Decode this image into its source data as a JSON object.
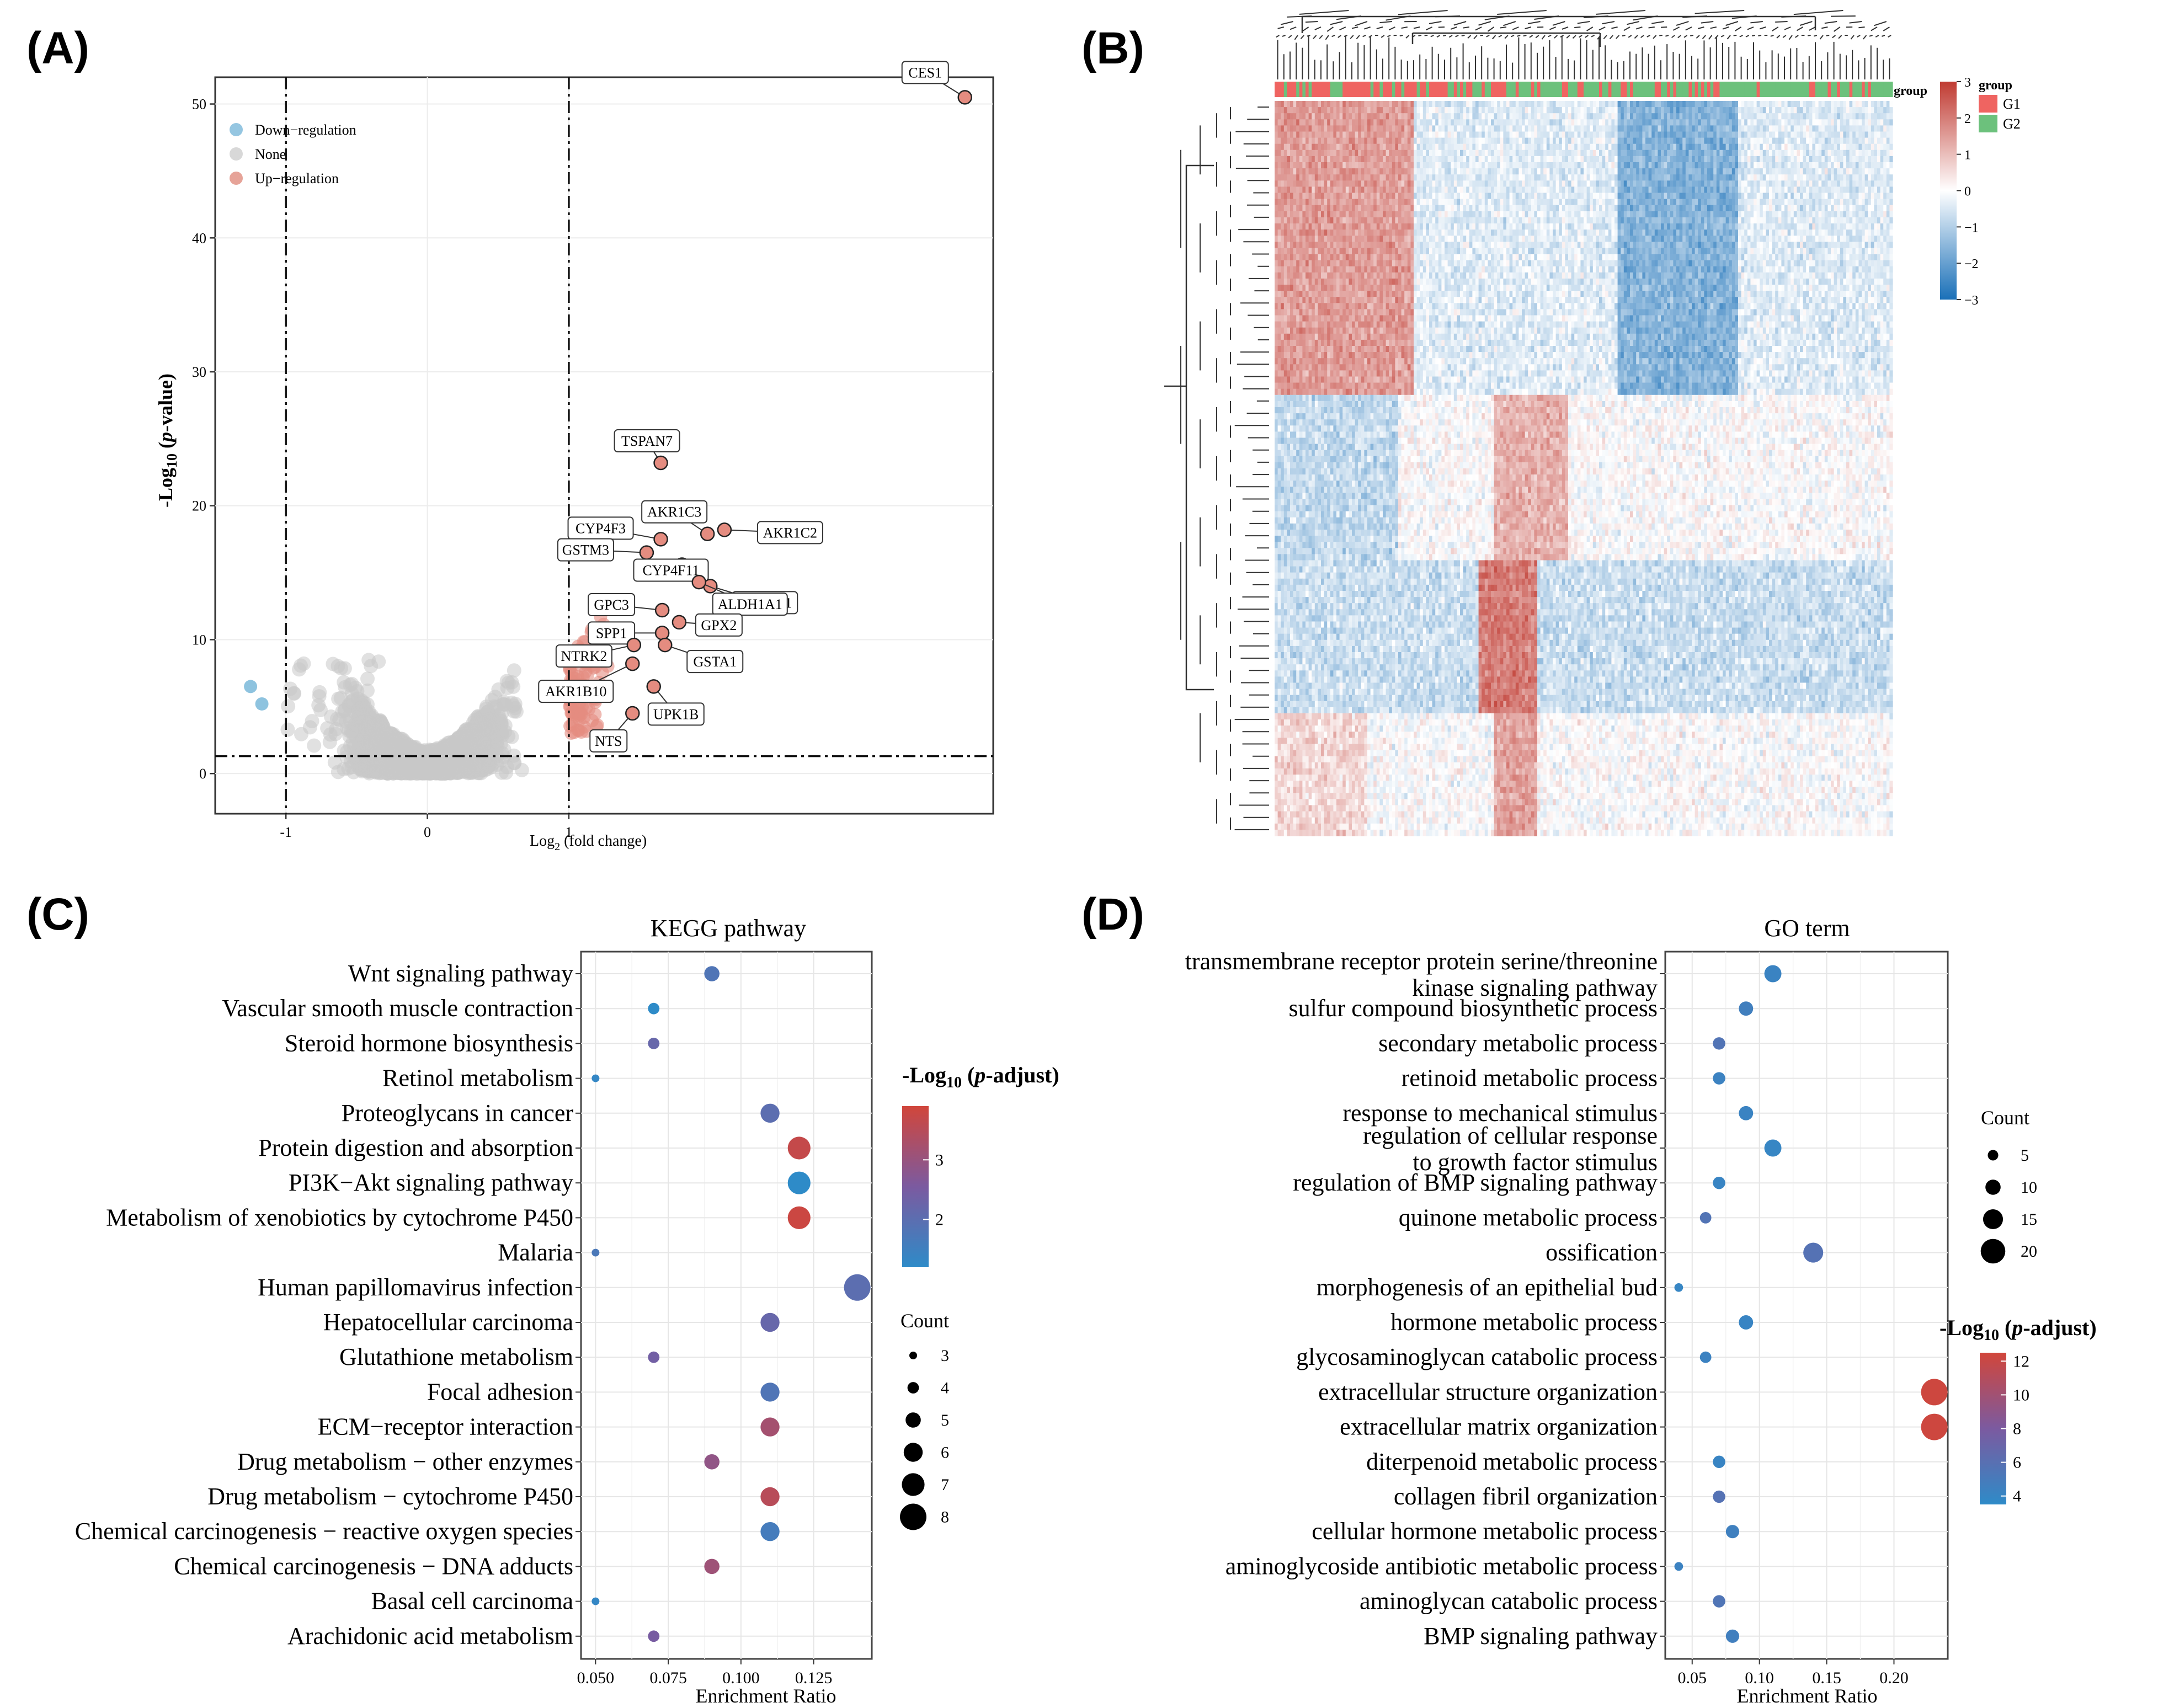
{
  "panels": {
    "A": "(A)",
    "B": "(B)",
    "C": "(C)",
    "D": "(D)"
  },
  "colors": {
    "up": "#c0392b",
    "down": "#2878b5",
    "none": "#c8c8c8",
    "g1": "#ef6461",
    "g2": "#6cc17c"
  },
  "chart_data": [
    {
      "id": "A",
      "type": "scatter",
      "title": "",
      "xlabel": "Log2 (fold change)",
      "xlabel_main": "Log",
      "xlabel_sub": "2",
      "xlabel_rest": " (fold change)",
      "ylabel_prefix": "-Log",
      "ylabel_sub": "10",
      "ylabel_paren_open": " (",
      "ylabel_italic": "p",
      "ylabel_rest": "-value)",
      "xlim": [
        -1.5,
        4.0
      ],
      "ylim": [
        -3,
        52
      ],
      "x_ticks": [
        -1,
        0,
        1
      ],
      "y_ticks": [
        0,
        10,
        20,
        30,
        40,
        50
      ],
      "thresholds": {
        "x": [
          -1,
          1
        ],
        "y": 1.3
      },
      "legend": [
        "Down−regulation",
        "None",
        "Up−regulation"
      ],
      "down_points": [
        {
          "x": -1.25,
          "y": 6.5
        },
        {
          "x": -1.17,
          "y": 5.2
        }
      ],
      "labeled_points": [
        {
          "label": "CES1",
          "x": 3.8,
          "y": 50.5
        },
        {
          "label": "TSPAN7",
          "x": 1.65,
          "y": 23.2
        },
        {
          "label": "AKR1C3",
          "x": 1.98,
          "y": 17.9
        },
        {
          "label": "AKR1C2",
          "x": 2.1,
          "y": 18.2
        },
        {
          "label": "CYP4F3",
          "x": 1.65,
          "y": 17.5
        },
        {
          "label": "GSTM3",
          "x": 1.55,
          "y": 16.5
        },
        {
          "label": "CYP4F11",
          "x": 1.8,
          "y": 15.6
        },
        {
          "label": "AKR1C1",
          "x": 2.0,
          "y": 14.0
        },
        {
          "label": "ALDH1A1",
          "x": 1.92,
          "y": 14.3
        },
        {
          "label": "GPC3",
          "x": 1.66,
          "y": 12.2
        },
        {
          "label": "GPX2",
          "x": 1.78,
          "y": 11.3
        },
        {
          "label": "SPP1",
          "x": 1.66,
          "y": 10.5
        },
        {
          "label": "NTRK2",
          "x": 1.46,
          "y": 9.6
        },
        {
          "label": "GSTA1",
          "x": 1.68,
          "y": 9.6
        },
        {
          "label": "AKR1B10",
          "x": 1.45,
          "y": 8.2
        },
        {
          "label": "UPK1B",
          "x": 1.6,
          "y": 6.5
        },
        {
          "label": "NTS",
          "x": 1.45,
          "y": 4.5
        }
      ]
    },
    {
      "id": "B",
      "type": "heatmap",
      "title": "",
      "color_scale_ticks": [
        "3",
        "2",
        "1",
        "0",
        "−1",
        "−2",
        "−3"
      ],
      "range": [
        -3,
        3
      ],
      "group_legend_title": "group",
      "group_annotation_label": "group",
      "groups": [
        "G1",
        "G2"
      ],
      "n_columns": 200,
      "n_rows": 120
    },
    {
      "id": "C",
      "type": "scatter",
      "title": "KEGG pathway",
      "xlabel": "Enrichment Ratio",
      "ylabel": "",
      "xlim": [
        0.045,
        0.145
      ],
      "x_ticks": [
        "0.050",
        "0.075",
        "0.100",
        "0.125"
      ],
      "x_tick_values": [
        0.05,
        0.075,
        0.1,
        0.125
      ],
      "color_title_prefix": "-Log",
      "color_title_sub": "10",
      "color_title_open": " (",
      "color_title_italic": "p",
      "color_title_rest": "-adjust)",
      "color_range": [
        1.2,
        3.9
      ],
      "color_ticks": [
        2,
        3
      ],
      "size_title": "Count",
      "size_legend": [
        3,
        4,
        5,
        6,
        7,
        8
      ],
      "size_range": [
        3,
        8
      ],
      "terms": [
        {
          "name": "Wnt signaling pathway",
          "ratio": 0.09,
          "count": 5,
          "padj": 1.8
        },
        {
          "name": "Vascular smooth muscle contraction",
          "ratio": 0.07,
          "count": 4,
          "padj": 1.2
        },
        {
          "name": "Steroid hormone biosynthesis",
          "ratio": 0.07,
          "count": 4,
          "padj": 2.2
        },
        {
          "name": "Retinol metabolism",
          "ratio": 0.05,
          "count": 3,
          "padj": 1.3
        },
        {
          "name": "Proteoglycans in cancer",
          "ratio": 0.11,
          "count": 6,
          "padj": 2.0
        },
        {
          "name": "Protein digestion and absorption",
          "ratio": 0.12,
          "count": 7,
          "padj": 3.7
        },
        {
          "name": "PI3K−Akt signaling pathway",
          "ratio": 0.12,
          "count": 7,
          "padj": 1.2
        },
        {
          "name": "Metabolism of xenobiotics by cytochrome P450",
          "ratio": 0.12,
          "count": 7,
          "padj": 3.8
        },
        {
          "name": "Malaria",
          "ratio": 0.05,
          "count": 3,
          "padj": 1.7
        },
        {
          "name": "Human papillomavirus infection",
          "ratio": 0.14,
          "count": 8,
          "padj": 2.0
        },
        {
          "name": "Hepatocellular carcinoma",
          "ratio": 0.11,
          "count": 6,
          "padj": 2.2
        },
        {
          "name": "Glutathione metabolism",
          "ratio": 0.07,
          "count": 4,
          "padj": 2.4
        },
        {
          "name": "Focal adhesion",
          "ratio": 0.11,
          "count": 6,
          "padj": 1.8
        },
        {
          "name": "ECM−receptor interaction",
          "ratio": 0.11,
          "count": 6,
          "padj": 3.2
        },
        {
          "name": "Drug metabolism − other enzymes",
          "ratio": 0.09,
          "count": 5,
          "padj": 2.9
        },
        {
          "name": "Drug metabolism − cytochrome P450",
          "ratio": 0.11,
          "count": 6,
          "padj": 3.5
        },
        {
          "name": "Chemical carcinogenesis − reactive oxygen species",
          "ratio": 0.11,
          "count": 6,
          "padj": 1.6
        },
        {
          "name": "Chemical carcinogenesis − DNA adducts",
          "ratio": 0.09,
          "count": 5,
          "padj": 3.1
        },
        {
          "name": "Basal cell carcinoma",
          "ratio": 0.05,
          "count": 3,
          "padj": 1.3
        },
        {
          "name": "Arachidonic acid metabolism",
          "ratio": 0.07,
          "count": 4,
          "padj": 2.5
        }
      ]
    },
    {
      "id": "D",
      "type": "scatter",
      "title": "GO term",
      "xlabel": "Enrichment Ratio",
      "ylabel": "",
      "xlim": [
        0.03,
        0.24
      ],
      "x_ticks": [
        "0.05",
        "0.10",
        "0.15",
        "0.20"
      ],
      "x_tick_values": [
        0.05,
        0.1,
        0.15,
        0.2
      ],
      "color_title_prefix": "-Log",
      "color_title_sub": "10",
      "color_title_open": " (",
      "color_title_italic": "p",
      "color_title_rest": "-adjust)",
      "color_range": [
        3.5,
        12.5
      ],
      "color_ticks": [
        4,
        6,
        8,
        10,
        12
      ],
      "size_title": "Count",
      "size_legend": [
        5,
        10,
        15,
        20
      ],
      "size_range": [
        2,
        22
      ],
      "terms": [
        {
          "name": "transmembrane receptor protein serine/threonine",
          "name2": "kinase signaling pathway",
          "ratio": 0.11,
          "count": 12,
          "padj": 4.2
        },
        {
          "name": "sulfur compound biosynthetic process",
          "ratio": 0.09,
          "count": 9,
          "padj": 4.6
        },
        {
          "name": "secondary metabolic process",
          "ratio": 0.07,
          "count": 7,
          "padj": 5.6
        },
        {
          "name": "retinoid metabolic process",
          "ratio": 0.07,
          "count": 7,
          "padj": 4.3
        },
        {
          "name": "response to mechanical stimulus",
          "ratio": 0.09,
          "count": 9,
          "padj": 4.2
        },
        {
          "name": "regulation of cellular response",
          "name2": "to growth factor stimulus",
          "ratio": 0.11,
          "count": 12,
          "padj": 4.0
        },
        {
          "name": "regulation of BMP signaling pathway",
          "ratio": 0.07,
          "count": 7,
          "padj": 4.1
        },
        {
          "name": "quinone metabolic process",
          "ratio": 0.06,
          "count": 6,
          "padj": 5.6
        },
        {
          "name": "ossification",
          "ratio": 0.14,
          "count": 15,
          "padj": 5.8
        },
        {
          "name": "morphogenesis of an epithelial bud",
          "ratio": 0.04,
          "count": 3,
          "padj": 4.0
        },
        {
          "name": "hormone metabolic process",
          "ratio": 0.09,
          "count": 9,
          "padj": 4.1
        },
        {
          "name": "glycosaminoglycan catabolic process",
          "ratio": 0.06,
          "count": 6,
          "padj": 4.3
        },
        {
          "name": "extracellular structure organization",
          "ratio": 0.23,
          "count": 22,
          "padj": 12.3
        },
        {
          "name": "extracellular matrix organization",
          "ratio": 0.23,
          "count": 22,
          "padj": 12.3
        },
        {
          "name": "diterpenoid metabolic process",
          "ratio": 0.07,
          "count": 7,
          "padj": 4.1
        },
        {
          "name": "collagen fibril organization",
          "ratio": 0.07,
          "count": 7,
          "padj": 5.8
        },
        {
          "name": "cellular hormone metabolic process",
          "ratio": 0.08,
          "count": 8,
          "padj": 4.5
        },
        {
          "name": "aminoglycoside antibiotic metabolic process",
          "ratio": 0.04,
          "count": 3,
          "padj": 4.3
        },
        {
          "name": "aminoglycan catabolic process",
          "ratio": 0.07,
          "count": 7,
          "padj": 5.5
        },
        {
          "name": "BMP signaling pathway",
          "ratio": 0.08,
          "count": 8,
          "padj": 4.6
        }
      ]
    }
  ]
}
